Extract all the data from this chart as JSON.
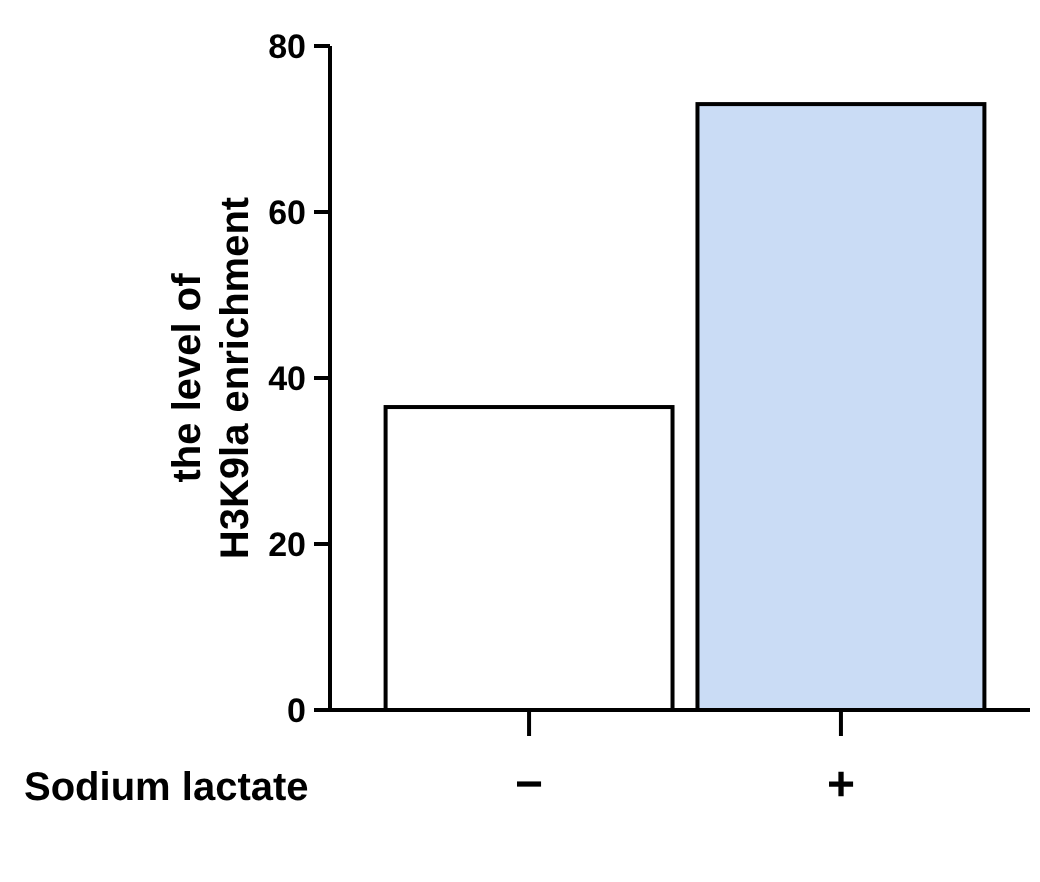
{
  "chart_data": {
    "type": "bar",
    "categories": [
      "−",
      "+"
    ],
    "xlabel": "Sodium lactate",
    "ylabel": "the level of\nH3K9la enrichment",
    "values": [
      36.5,
      73
    ],
    "colors": [
      "#ffffff",
      "#cadcf5"
    ],
    "ylim": [
      0,
      80
    ],
    "yticks": [
      0,
      20,
      40,
      60,
      80
    ],
    "grid": false
  }
}
